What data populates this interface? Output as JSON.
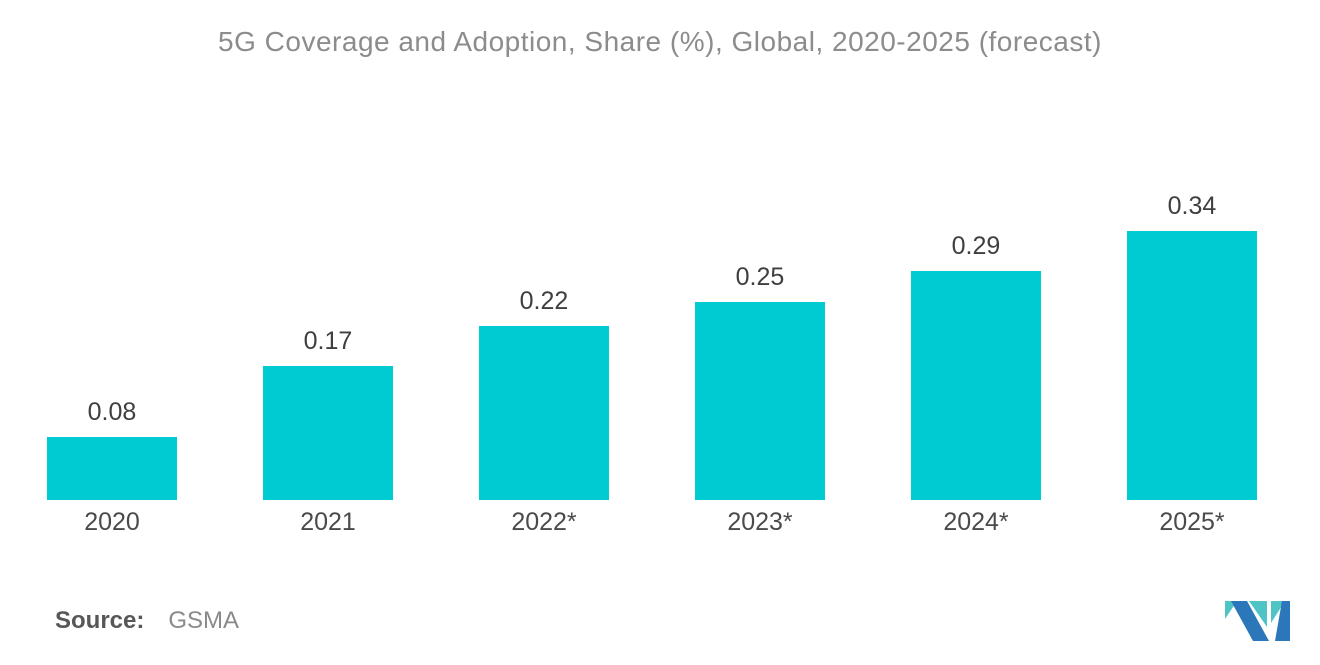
{
  "title": "5G Coverage and Adoption, Share (%), Global, 2020-2025 (forecast)",
  "source": {
    "label": "Source:",
    "value": "GSMA"
  },
  "logo": {
    "name": "mordor-intelligence-logo",
    "teal": "#4EC4C6",
    "blue": "#2B77B9"
  },
  "chart_data": {
    "type": "bar",
    "categories": [
      "2020",
      "2021",
      "2022*",
      "2023*",
      "2024*",
      "2025*"
    ],
    "values": [
      0.08,
      0.17,
      0.22,
      0.25,
      0.29,
      0.34
    ],
    "title": "5G Coverage and Adoption, Share (%), Global, 2020-2025 (forecast)",
    "xlabel": "",
    "ylabel": "",
    "ylim": [
      0,
      0.4
    ],
    "grid": false,
    "legend": "none",
    "bar_color": "#00CBD2",
    "title_color": "#8C8C8C",
    "value_label_color": "#3F3F3F",
    "category_label_color": "#4A4A4A",
    "value_label_format": "2-decimals"
  }
}
